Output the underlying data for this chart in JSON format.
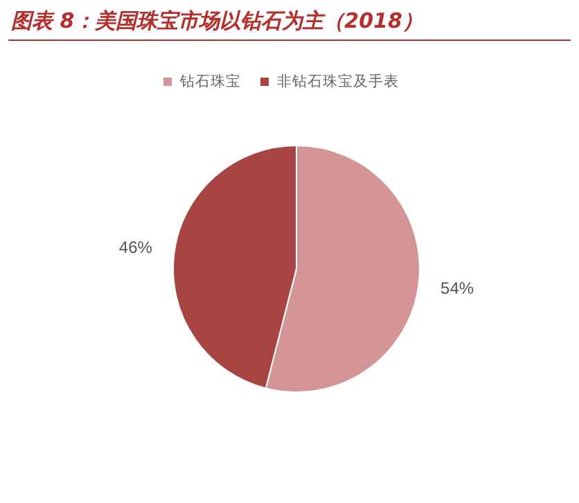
{
  "chart_data": {
    "type": "pie",
    "title": "图表 8：美国珠宝市场以钻石为主（2018）",
    "categories": [
      "钻石珠宝",
      "非钻石珠宝及手表"
    ],
    "values": [
      54,
      46
    ],
    "colors": [
      "#d39595",
      "#a84442"
    ],
    "value_labels": [
      "54%",
      "46%"
    ],
    "legend": "top"
  }
}
